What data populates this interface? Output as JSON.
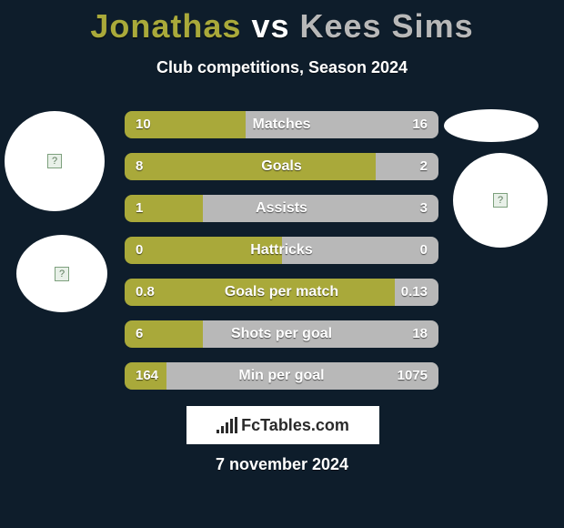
{
  "title": {
    "player1": "Jonathas",
    "vs": " vs ",
    "player2": "Kees Sims"
  },
  "subtitle": "Club competitions, Season 2024",
  "colors": {
    "player1": "#a9a93a",
    "player2": "#b8b8b8",
    "background": "#0e1d2b"
  },
  "rows": [
    {
      "label": "Matches",
      "left": "10",
      "right": "16",
      "left_pct": 38.5,
      "right_pct": 61.5
    },
    {
      "label": "Goals",
      "left": "8",
      "right": "2",
      "left_pct": 80.0,
      "right_pct": 20.0
    },
    {
      "label": "Assists",
      "left": "1",
      "right": "3",
      "left_pct": 25.0,
      "right_pct": 75.0
    },
    {
      "label": "Hattricks",
      "left": "0",
      "right": "0",
      "left_pct": 50.0,
      "right_pct": 50.0
    },
    {
      "label": "Goals per match",
      "left": "0.8",
      "right": "0.13",
      "left_pct": 86.0,
      "right_pct": 14.0
    },
    {
      "label": "Shots per goal",
      "left": "6",
      "right": "18",
      "left_pct": 25.0,
      "right_pct": 75.0
    },
    {
      "label": "Min per goal",
      "left": "164",
      "right": "1075",
      "left_pct": 13.2,
      "right_pct": 86.8
    }
  ],
  "logo_text": "FcTables.com",
  "date": "7 november 2024"
}
